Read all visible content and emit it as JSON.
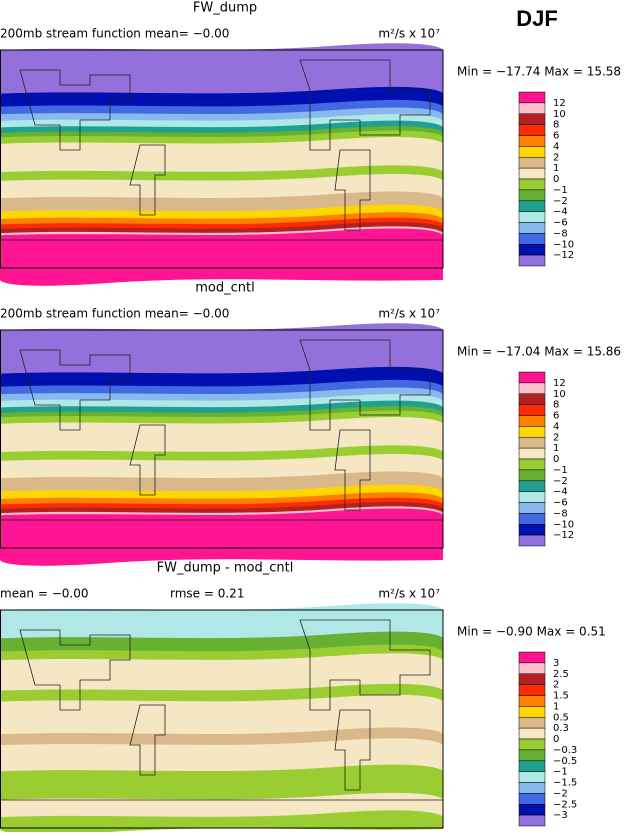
{
  "header": {
    "season": "DJF"
  },
  "panels": [
    {
      "title": "FW_dump",
      "stats": [
        "200mb stream function  mean=   −0.00"
      ],
      "units": "m²/s x 10⁷",
      "minmax": "Min = −17.74 Max =  15.58",
      "colorbar": {
        "labels": [
          "12",
          "10",
          "8",
          "6",
          "4",
          "2",
          "1",
          "0",
          "−1",
          "−2",
          "−4",
          "−6",
          "−8",
          "−10",
          "−12"
        ],
        "colors": [
          "#ff1493",
          "#ffc0cb",
          "#b22222",
          "#ff2a00",
          "#ff7f00",
          "#ffd700",
          "#d9b98a",
          "#f5e6c4",
          "#9acd32",
          "#66b032",
          "#20a090",
          "#b0e8e8",
          "#87b8ee",
          "#4169e1",
          "#0010b0",
          "#9370db"
        ]
      }
    },
    {
      "title": "mod_cntl",
      "stats": [
        "200mb stream function  mean=   −0.00"
      ],
      "units": "m²/s x 10⁷",
      "minmax": "Min = −17.04 Max =  15.86",
      "colorbar": {
        "labels": [
          "12",
          "10",
          "8",
          "6",
          "4",
          "2",
          "1",
          "0",
          "−1",
          "−2",
          "−4",
          "−6",
          "−8",
          "−10",
          "−12"
        ],
        "colors": [
          "#ff1493",
          "#ffc0cb",
          "#b22222",
          "#ff2a00",
          "#ff7f00",
          "#ffd700",
          "#d9b98a",
          "#f5e6c4",
          "#9acd32",
          "#66b032",
          "#20a090",
          "#b0e8e8",
          "#87b8ee",
          "#4169e1",
          "#0010b0",
          "#9370db"
        ]
      }
    },
    {
      "title": "FW_dump - mod_cntl",
      "stats": [
        "mean =  −0.00",
        "rmse =   0.21"
      ],
      "units": "m²/s x 10⁷",
      "minmax": "Min =  −0.90 Max =   0.51",
      "colorbar": {
        "labels": [
          "3",
          "2.5",
          "2",
          "1.5",
          "1",
          "0.5",
          "0.3",
          "0",
          "−0.3",
          "−0.5",
          "−1",
          "−1.5",
          "−2",
          "−2.5",
          "−3"
        ],
        "colors": [
          "#ff1493",
          "#ffc0cb",
          "#b22222",
          "#ff2a00",
          "#ff7f00",
          "#ffd700",
          "#d9b98a",
          "#f5e6c4",
          "#9acd32",
          "#66b032",
          "#20a090",
          "#b0e8e8",
          "#87b8ee",
          "#4169e1",
          "#0010b0",
          "#9370db"
        ]
      }
    }
  ]
}
